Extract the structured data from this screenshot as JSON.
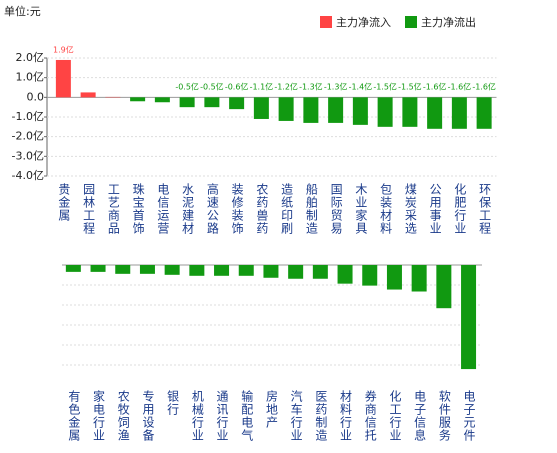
{
  "chart_data": [
    {
      "type": "bar",
      "unit": "单位:元",
      "categories": [
        "贵金属",
        "园林工程",
        "工艺商品",
        "珠宝首饰",
        "电信运营",
        "水泥建材",
        "高速公路",
        "装修装饰",
        "农药兽药",
        "造纸印刷",
        "船舶制造",
        "国际贸易",
        "木业家具",
        "包装材料",
        "煤炭采选",
        "公用事业",
        "化肥行业",
        "环保工程"
      ],
      "series": [
        {
          "name": "主力净流入",
          "color": "#ff4444",
          "values": [
            1.9,
            0.25,
            0.02,
            null,
            null,
            null,
            null,
            null,
            null,
            null,
            null,
            null,
            null,
            null,
            null,
            null,
            null,
            null
          ],
          "value_labels": [
            "1.9亿",
            null,
            null,
            null,
            null,
            null,
            null,
            null,
            null,
            null,
            null,
            null,
            null,
            null,
            null,
            null,
            null,
            null
          ]
        },
        {
          "name": "主力净流出",
          "color": "#119911",
          "values": [
            null,
            null,
            null,
            -0.2,
            -0.25,
            -0.5,
            -0.5,
            -0.6,
            -1.1,
            -1.2,
            -1.3,
            -1.3,
            -1.4,
            -1.5,
            -1.5,
            -1.6,
            -1.6,
            -1.6
          ],
          "value_labels": [
            null,
            null,
            null,
            null,
            null,
            "-0.5亿",
            "-0.5亿",
            "-0.6亿",
            "-1.1亿",
            "-1.2亿",
            "-1.3亿",
            "-1.3亿",
            "-1.4亿",
            "-1.5亿",
            "-1.5亿",
            "-1.6亿",
            "-1.6亿",
            "-1.6亿"
          ]
        }
      ],
      "ylim": [
        -4,
        2
      ],
      "yticks": [
        {
          "value": 2,
          "label": "2.0亿"
        },
        {
          "value": 1,
          "label": "1.0亿"
        },
        {
          "value": 0,
          "label": "0.0"
        },
        {
          "value": -1,
          "label": "-1.0亿"
        },
        {
          "value": -2,
          "label": "-2.0亿"
        },
        {
          "value": -3,
          "label": "-3.0亿"
        },
        {
          "value": -4,
          "label": "-4.0亿"
        }
      ],
      "grid": true
    },
    {
      "type": "bar",
      "categories": [
        "有色金属",
        "家电行业",
        "农牧饲渔",
        "专用设备",
        "银行",
        "机械行业",
        "通讯行业",
        "输配电气",
        "房地产",
        "汽车行业",
        "医药制造",
        "材料行业",
        "券商信托",
        "化工行业",
        "电子信息",
        "软件服务",
        "电子元件"
      ],
      "values": [
        -0.35,
        -0.35,
        -0.45,
        -0.45,
        -0.5,
        -0.55,
        -0.55,
        -0.55,
        -0.65,
        -0.7,
        -0.7,
        -0.95,
        -1.05,
        -1.25,
        -1.35,
        -2.2,
        -5.3
      ],
      "color": "#119911",
      "ylim": [
        -5.5,
        0
      ]
    }
  ]
}
